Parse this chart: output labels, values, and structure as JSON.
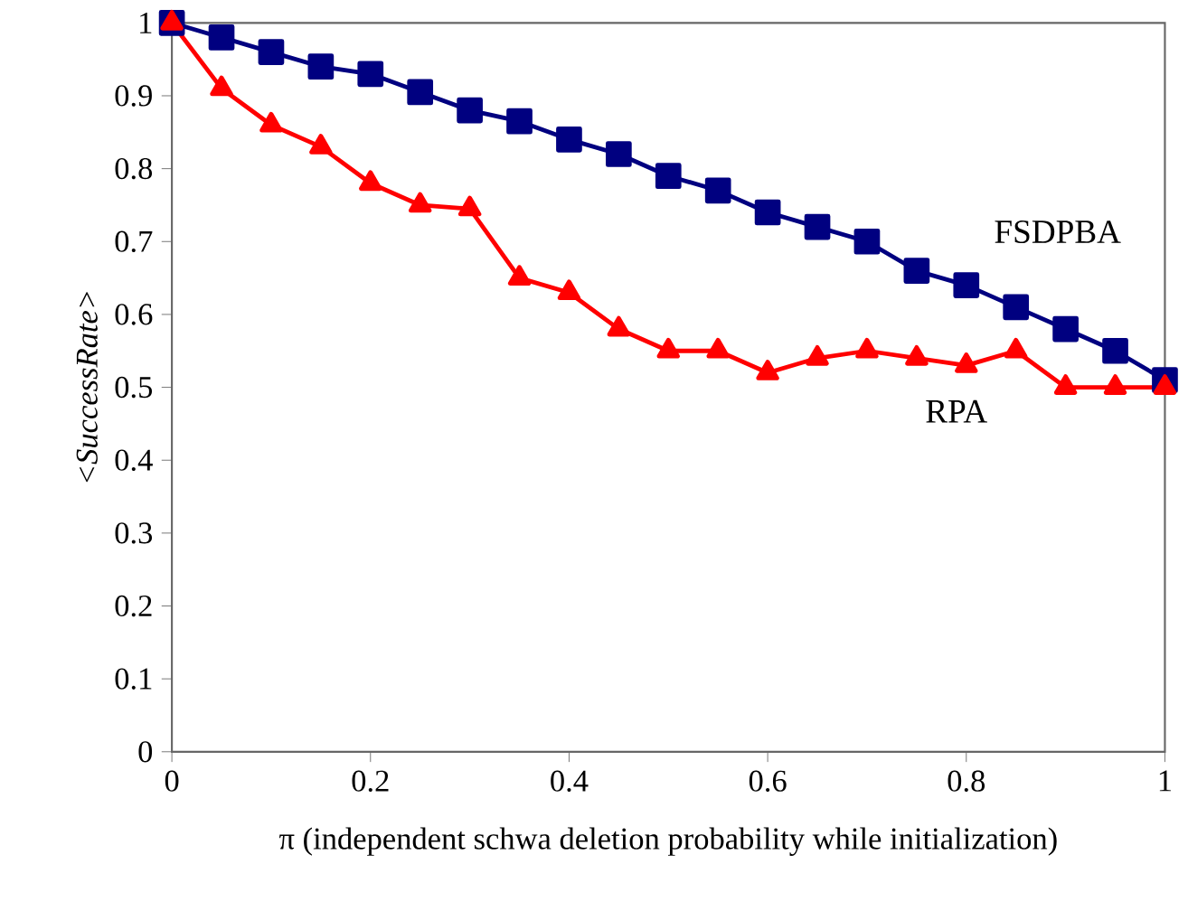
{
  "chart_data": {
    "type": "line",
    "xlabel": "π (independent schwa deletion probability while initialization)",
    "ylabel": "<SuccessRate>",
    "x": [
      0,
      0.05,
      0.1,
      0.15,
      0.2,
      0.25,
      0.3,
      0.35,
      0.4,
      0.45,
      0.5,
      0.55,
      0.6,
      0.65,
      0.7,
      0.75,
      0.8,
      0.85,
      0.9,
      0.95,
      1
    ],
    "series": [
      {
        "name": "FSDPBA",
        "color": "#000080",
        "marker": "square",
        "values": [
          1.0,
          0.98,
          0.96,
          0.94,
          0.93,
          0.905,
          0.88,
          0.865,
          0.84,
          0.82,
          0.79,
          0.77,
          0.74,
          0.72,
          0.7,
          0.66,
          0.64,
          0.61,
          0.58,
          0.55,
          0.51
        ]
      },
      {
        "name": "RPA",
        "color": "#ff0000",
        "marker": "triangle",
        "values": [
          1.0,
          0.91,
          0.86,
          0.83,
          0.78,
          0.75,
          0.745,
          0.65,
          0.63,
          0.58,
          0.55,
          0.55,
          0.52,
          0.54,
          0.55,
          0.54,
          0.53,
          0.55,
          0.5,
          0.5,
          0.5
        ]
      }
    ],
    "xlim": [
      0,
      1
    ],
    "ylim": [
      0,
      1
    ],
    "xticks": [
      {
        "value": 0,
        "label": "0"
      },
      {
        "value": 0.2,
        "label": "0.2"
      },
      {
        "value": 0.4,
        "label": "0.4"
      },
      {
        "value": 0.6,
        "label": "0.6"
      },
      {
        "value": 0.8,
        "label": "0.8"
      },
      {
        "value": 1,
        "label": "1"
      }
    ],
    "yticks": [
      {
        "value": 0,
        "label": "0"
      },
      {
        "value": 0.1,
        "label": "0.1"
      },
      {
        "value": 0.2,
        "label": "0.2"
      },
      {
        "value": 0.3,
        "label": "0.3"
      },
      {
        "value": 0.4,
        "label": "0.4"
      },
      {
        "value": 0.5,
        "label": "0.5"
      },
      {
        "value": 0.6,
        "label": "0.6"
      },
      {
        "value": 0.7,
        "label": "0.7"
      },
      {
        "value": 0.8,
        "label": "0.8"
      },
      {
        "value": 0.9,
        "label": "0.9"
      },
      {
        "value": 1,
        "label": "1"
      }
    ],
    "grid": false,
    "legend": false
  }
}
